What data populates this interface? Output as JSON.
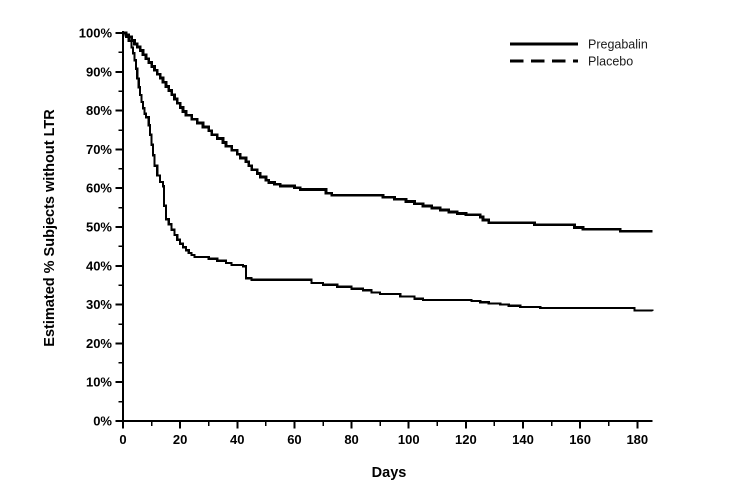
{
  "figure": {
    "background": "#ffffff",
    "line_color": "#000000",
    "text_color": "#000000"
  },
  "chart_data": {
    "type": "line",
    "subtype": "kaplan_meier_step",
    "title": "",
    "xlabel": "Days",
    "ylabel": "Estimated % Subjects without LTR",
    "grid": false,
    "x_axis": {
      "min": 0,
      "max": 185,
      "major_ticks": [
        0,
        20,
        40,
        60,
        80,
        100,
        120,
        140,
        160,
        180
      ],
      "major_tick_labels": [
        "0",
        "20",
        "40",
        "60",
        "80",
        "100",
        "120",
        "140",
        "160",
        "180"
      ],
      "minor_ticks": [
        10,
        30,
        50,
        70,
        90,
        110,
        130,
        150,
        170
      ]
    },
    "y_axis": {
      "min": 0,
      "max": 100,
      "major_ticks": [
        0,
        10,
        20,
        30,
        40,
        50,
        60,
        70,
        80,
        90,
        100
      ],
      "major_tick_labels": [
        "0%",
        "10%",
        "20%",
        "30%",
        "40%",
        "50%",
        "60%",
        "70%",
        "80%",
        "90%",
        "100%"
      ],
      "minor_ticks": [
        5,
        15,
        25,
        35,
        45,
        55,
        65,
        75,
        85,
        95
      ]
    },
    "legend": {
      "position": "top-right",
      "entries": [
        {
          "label": "Pregabalin",
          "line_style": "solid"
        },
        {
          "label": "Placebo",
          "line_style": "dashed"
        }
      ]
    },
    "series": [
      {
        "name": "Pregabalin",
        "legend_line_style": "solid",
        "plot_line_style": "solid",
        "color": "#000000",
        "points": [
          [
            0,
            100
          ],
          [
            1,
            99.5
          ],
          [
            2,
            99
          ],
          [
            3,
            98.1
          ],
          [
            4,
            97.2
          ],
          [
            5,
            96.4
          ],
          [
            6,
            95.5
          ],
          [
            7,
            94.4
          ],
          [
            8,
            93.4
          ],
          [
            9,
            92.4
          ],
          [
            10,
            91.4
          ],
          [
            11,
            90.4
          ],
          [
            12,
            89.4
          ],
          [
            13,
            88.4
          ],
          [
            14,
            87.3
          ],
          [
            15,
            86.2
          ],
          [
            16,
            85.2
          ],
          [
            17,
            84.1
          ],
          [
            18,
            83.0
          ],
          [
            19,
            81.9
          ],
          [
            20,
            80.8
          ],
          [
            21,
            79.8
          ],
          [
            22,
            78.8
          ],
          [
            24,
            77.8
          ],
          [
            26,
            76.8
          ],
          [
            28,
            75.8
          ],
          [
            30,
            74.8
          ],
          [
            31,
            73.8
          ],
          [
            33,
            72.8
          ],
          [
            35,
            71.8
          ],
          [
            36,
            70.8
          ],
          [
            38,
            69.8
          ],
          [
            40,
            68.8
          ],
          [
            41,
            67.8
          ],
          [
            43,
            66.8
          ],
          [
            44,
            65.8
          ],
          [
            45,
            64.8
          ],
          [
            47,
            63.8
          ],
          [
            48,
            62.9
          ],
          [
            50,
            62.1
          ],
          [
            51,
            61.5
          ],
          [
            53,
            61.0
          ],
          [
            55,
            60.6
          ],
          [
            60,
            60.1
          ],
          [
            62,
            59.7
          ],
          [
            71,
            58.7
          ],
          [
            73,
            58.2
          ],
          [
            91,
            57.7
          ],
          [
            95,
            57.2
          ],
          [
            99,
            56.6
          ],
          [
            102,
            56.0
          ],
          [
            105,
            55.4
          ],
          [
            108,
            54.9
          ],
          [
            111,
            54.4
          ],
          [
            114,
            53.9
          ],
          [
            117,
            53.5
          ],
          [
            120,
            53.2
          ],
          [
            125,
            52.6
          ],
          [
            126,
            51.8
          ],
          [
            128,
            51.1
          ],
          [
            144,
            50.6
          ],
          [
            158,
            49.9
          ],
          [
            161,
            49.4
          ],
          [
            174,
            48.9
          ],
          [
            185.3,
            48.9
          ]
        ]
      },
      {
        "name": "Placebo",
        "legend_line_style": "dashed",
        "plot_line_style": "solid",
        "color": "#000000",
        "points": [
          [
            0,
            100
          ],
          [
            1,
            99
          ],
          [
            2,
            98
          ],
          [
            3,
            96.3
          ],
          [
            3.5,
            94.8
          ],
          [
            4,
            93.0
          ],
          [
            4.5,
            90.8
          ],
          [
            5,
            88.3
          ],
          [
            5.5,
            86.0
          ],
          [
            6,
            84.0
          ],
          [
            6.5,
            82.2
          ],
          [
            7,
            80.6
          ],
          [
            7.5,
            79.2
          ],
          [
            8,
            78.3
          ],
          [
            9,
            76.2
          ],
          [
            9.5,
            73.8
          ],
          [
            10,
            71.2
          ],
          [
            10.5,
            68.5
          ],
          [
            11,
            65.8
          ],
          [
            12,
            63.3
          ],
          [
            13,
            61.6
          ],
          [
            14,
            60.5
          ],
          [
            14.3,
            55.5
          ],
          [
            15,
            52.0
          ],
          [
            16,
            50.7
          ],
          [
            17,
            49.3
          ],
          [
            18,
            47.9
          ],
          [
            19,
            46.7
          ],
          [
            20,
            45.7
          ],
          [
            21,
            44.8
          ],
          [
            22,
            44.0
          ],
          [
            23,
            43.3
          ],
          [
            24,
            42.8
          ],
          [
            25,
            42.3
          ],
          [
            30,
            41.8
          ],
          [
            33,
            41.3
          ],
          [
            36,
            40.7
          ],
          [
            38,
            40.2
          ],
          [
            42,
            39.9
          ],
          [
            43,
            36.8
          ],
          [
            45,
            36.4
          ],
          [
            66,
            35.6
          ],
          [
            70,
            35.1
          ],
          [
            75,
            34.6
          ],
          [
            80,
            34.1
          ],
          [
            84,
            33.7
          ],
          [
            87,
            33.1
          ],
          [
            90,
            32.7
          ],
          [
            97,
            32.1
          ],
          [
            102,
            31.5
          ],
          [
            105,
            31.2
          ],
          [
            122,
            30.9
          ],
          [
            125,
            30.6
          ],
          [
            128,
            30.3
          ],
          [
            132,
            30.0
          ],
          [
            135,
            29.7
          ],
          [
            139,
            29.4
          ],
          [
            146,
            29.1
          ],
          [
            179,
            28.5
          ],
          [
            185.3,
            28.3
          ]
        ]
      }
    ]
  }
}
